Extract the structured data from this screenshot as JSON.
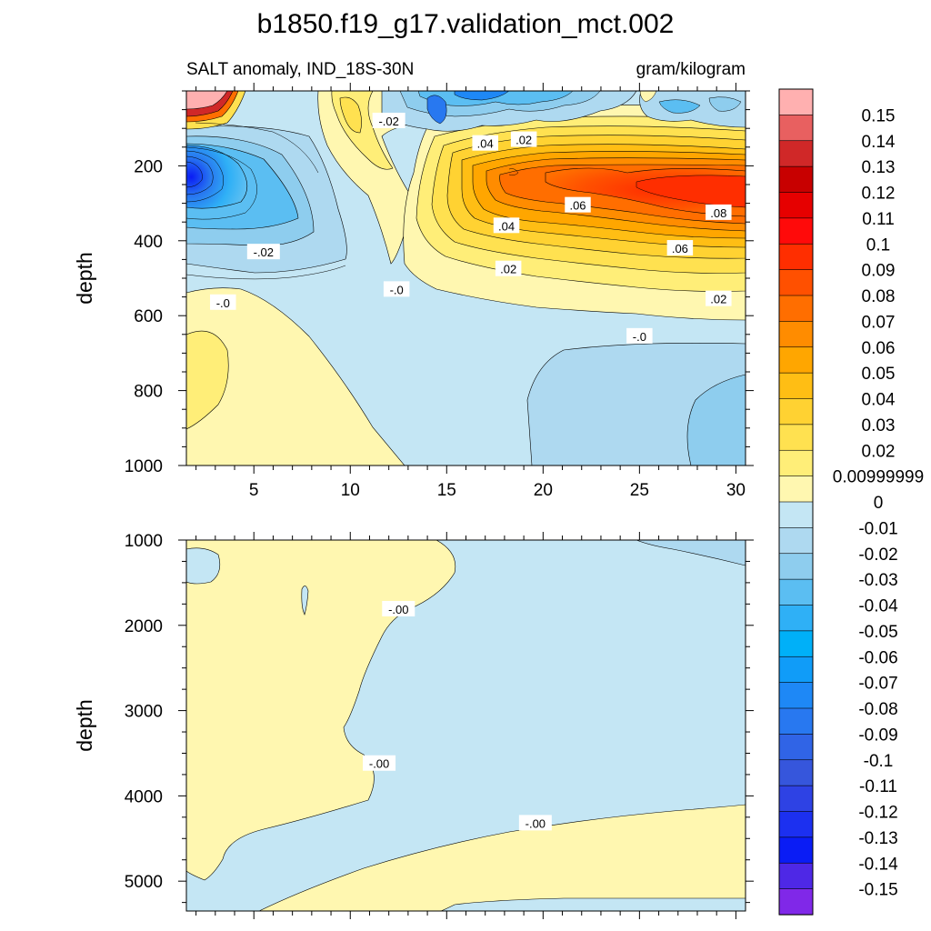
{
  "chart_data": {
    "type": "contour",
    "title": "b1850.f19_g17.validation_mct.002",
    "subtitle_left": "SALT anomaly, IND_18S-30N",
    "subtitle_right": "gram/kilogram",
    "xlabel": "",
    "ylabel": "depth",
    "xlim": [
      1.5,
      30.5
    ],
    "x_ticks": [
      5,
      10,
      15,
      20,
      25,
      30
    ],
    "panels": [
      {
        "name": "upper",
        "ylim": [
          0,
          1000
        ],
        "y_ticks": [
          200,
          400,
          600,
          800,
          1000
        ],
        "contour_labels": [
          {
            "text": "-.02",
            "x": 12.0,
            "y": 80
          },
          {
            "text": ".04",
            "x": 17.0,
            "y": 140
          },
          {
            "text": ".02",
            "x": 19.0,
            "y": 130
          },
          {
            "text": ".06",
            "x": 21.8,
            "y": 305
          },
          {
            "text": ".04",
            "x": 18.1,
            "y": 360
          },
          {
            "text": ".08",
            "x": 29.1,
            "y": 325
          },
          {
            "text": "-.02",
            "x": 5.5,
            "y": 430
          },
          {
            "text": ".06",
            "x": 27.1,
            "y": 420
          },
          {
            "text": ".02",
            "x": 18.2,
            "y": 475
          },
          {
            "text": "-.0",
            "x": 12.4,
            "y": 530
          },
          {
            "text": ".02",
            "x": 29.1,
            "y": 555
          },
          {
            "text": "-.0",
            "x": 3.4,
            "y": 565
          },
          {
            "text": "-.0",
            "x": 25.0,
            "y": 655
          }
        ]
      },
      {
        "name": "lower",
        "ylim": [
          1000,
          5350
        ],
        "y_ticks": [
          1000,
          2000,
          3000,
          4000,
          5000
        ],
        "contour_labels": [
          {
            "text": "-.00",
            "x": 12.5,
            "y": 1810
          },
          {
            "text": "-.00",
            "x": 11.5,
            "y": 3620
          },
          {
            "text": "-.00",
            "x": 19.6,
            "y": 4320
          }
        ]
      }
    ],
    "colorbar": {
      "levels": [
        "0.15",
        "0.14",
        "0.13",
        "0.12",
        "0.11",
        "0.1",
        "0.09",
        "0.08",
        "0.07",
        "0.06",
        "0.05",
        "0.04",
        "0.03",
        "0.02",
        "0.00999999",
        "0",
        "-0.01",
        "-0.02",
        "-0.03",
        "-0.04",
        "-0.05",
        "-0.06",
        "-0.07",
        "-0.08",
        "-0.09",
        "-0.1",
        "-0.11",
        "-0.12",
        "-0.13",
        "-0.14",
        "-0.15"
      ],
      "colors": [
        "#FFB0B0",
        "#E86060",
        "#D02828",
        "#C80000",
        "#E60000",
        "#FF0A0A",
        "#FF2E00",
        "#FF5000",
        "#FF6E00",
        "#FF8C00",
        "#FFA600",
        "#FFBE14",
        "#FFD232",
        "#FFE150",
        "#FFEE78",
        "#FFF7B0",
        "#C4E6F4",
        "#AED9F0",
        "#8ECDEE",
        "#5BBEF2",
        "#2FB0F6",
        "#00B0F8",
        "#109CF8",
        "#1E88F6",
        "#2878F0",
        "#3064E6",
        "#3656DC",
        "#2E42E4",
        "#1C30F0",
        "#0A1CF5",
        "#4E28E6",
        "#8028E8"
      ]
    }
  }
}
